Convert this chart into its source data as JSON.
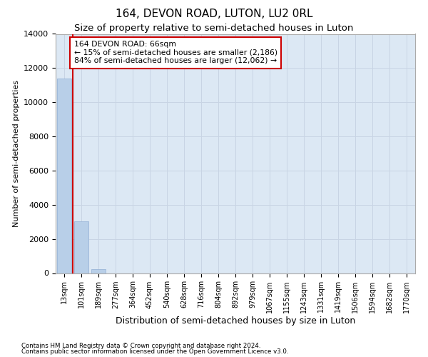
{
  "title": "164, DEVON ROAD, LUTON, LU2 0RL",
  "subtitle": "Size of property relative to semi-detached houses in Luton",
  "xlabel": "Distribution of semi-detached houses by size in Luton",
  "ylabel": "Number of semi-detached properties",
  "categories": [
    "13sqm",
    "101sqm",
    "189sqm",
    "277sqm",
    "364sqm",
    "452sqm",
    "540sqm",
    "628sqm",
    "716sqm",
    "804sqm",
    "892sqm",
    "979sqm",
    "1067sqm",
    "1155sqm",
    "1243sqm",
    "1331sqm",
    "1419sqm",
    "1506sqm",
    "1594sqm",
    "1682sqm",
    "1770sqm"
  ],
  "bar_values": [
    11400,
    3050,
    210,
    0,
    0,
    0,
    0,
    0,
    0,
    0,
    0,
    0,
    0,
    0,
    0,
    0,
    0,
    0,
    0,
    0,
    0
  ],
  "bar_color": "#b8cfe8",
  "bar_edge_color": "#9ab5d8",
  "property_line_x": 0.52,
  "annotation_text_line1": "164 DEVON ROAD: 66sqm",
  "annotation_text_line2": "← 15% of semi-detached houses are smaller (2,186)",
  "annotation_text_line3": "84% of semi-detached houses are larger (12,062) →",
  "ylim": [
    0,
    14000
  ],
  "yticks": [
    0,
    2000,
    4000,
    6000,
    8000,
    10000,
    12000,
    14000
  ],
  "grid_color": "#c8d4e4",
  "background_color": "#dce8f4",
  "footer_line1": "Contains HM Land Registry data © Crown copyright and database right 2024.",
  "footer_line2": "Contains public sector information licensed under the Open Government Licence v3.0.",
  "red_line_color": "#cc0000",
  "annotation_box_edge_color": "#cc0000",
  "title_fontsize": 11,
  "subtitle_fontsize": 9.5
}
